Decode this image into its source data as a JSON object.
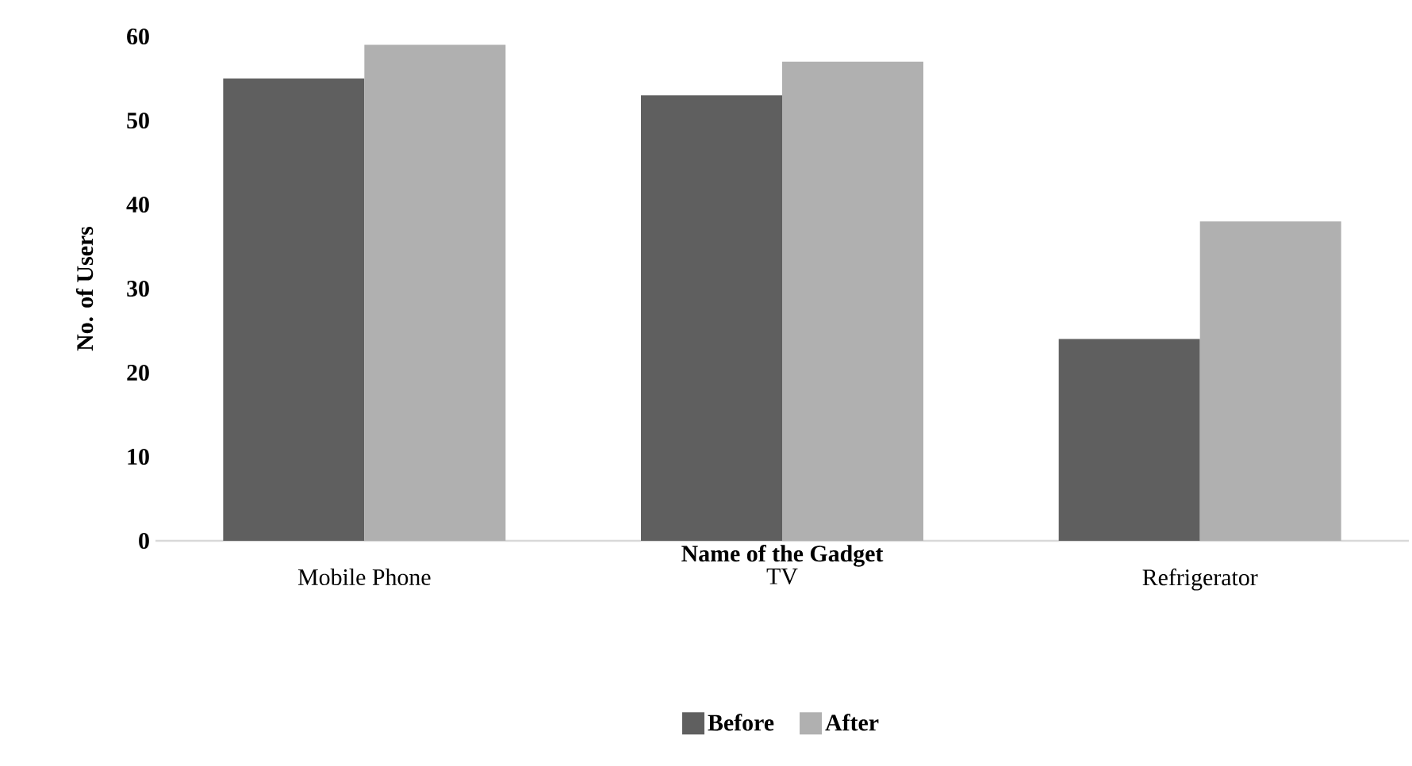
{
  "chart_data": {
    "type": "bar",
    "xlabel": "Name of the Gadget",
    "ylabel": "No. of Users",
    "categories": [
      "Mobile Phone",
      "TV",
      "Refrigerator"
    ],
    "series": [
      {
        "name": "Before",
        "color": "#5f5f5f",
        "values": [
          55,
          53,
          24
        ]
      },
      {
        "name": "After",
        "color": "#b0b0b0",
        "values": [
          59,
          57,
          38
        ]
      }
    ],
    "ylim": [
      0,
      60
    ],
    "yticks": [
      0,
      10,
      20,
      30,
      40,
      50,
      60
    ],
    "legend": "bottom"
  }
}
